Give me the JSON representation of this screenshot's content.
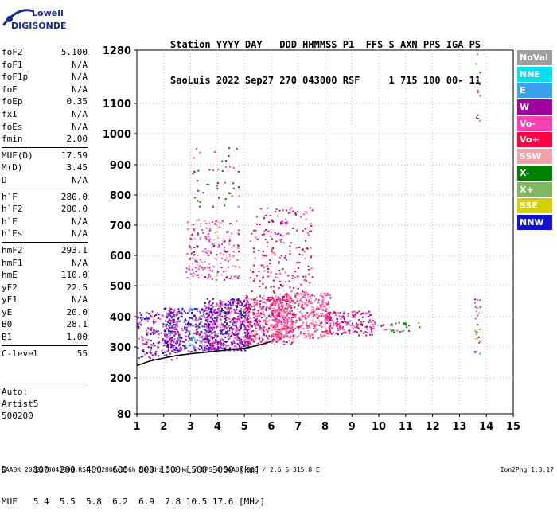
{
  "logo": {
    "top": "Lowell",
    "bottom": "DIGISONDE"
  },
  "header": {
    "line1": "Station YYYY DAY   DDD HHMMSS P1  FFS S AXN PPS IGA PS",
    "line2": "SaoLuis 2022 Sep27 270 043000 RSF     1 715 100 00- 11"
  },
  "params": [
    {
      "group": [
        {
          "name": "foF2",
          "value": "5.100"
        },
        {
          "name": "foF1",
          "value": "N/A"
        },
        {
          "name": "foF1p",
          "value": "N/A"
        },
        {
          "name": "foE",
          "value": "N/A"
        },
        {
          "name": "foEp",
          "value": "0.35"
        },
        {
          "name": "fxI",
          "value": "N/A"
        },
        {
          "name": "foEs",
          "value": "N/A"
        },
        {
          "name": "fmin",
          "value": "2.00"
        }
      ]
    },
    {
      "group": [
        {
          "name": "MUF(D)",
          "value": "17.59"
        },
        {
          "name": "M(D)",
          "value": "3.45"
        },
        {
          "name": "D",
          "value": "N/A"
        }
      ]
    },
    {
      "group": [
        {
          "name": "h`F",
          "value": "280.0"
        },
        {
          "name": "h`F2",
          "value": "280.0"
        },
        {
          "name": "h`E",
          "value": "N/A"
        },
        {
          "name": "h`Es",
          "value": "N/A"
        }
      ]
    },
    {
      "group": [
        {
          "name": "hmF2",
          "value": "293.1"
        },
        {
          "name": "hmF1",
          "value": "N/A"
        },
        {
          "name": "hmE",
          "value": "110.0"
        },
        {
          "name": "yF2",
          "value": "22.5"
        },
        {
          "name": "yF1",
          "value": "N/A"
        },
        {
          "name": "yE",
          "value": "20.0"
        },
        {
          "name": "B0",
          "value": "28.1"
        },
        {
          "name": "B1",
          "value": "1.00"
        }
      ]
    },
    {
      "group": [
        {
          "name": "C-level",
          "value": "55"
        }
      ]
    }
  ],
  "auto": [
    "Auto:",
    "Artist5",
    "500200"
  ],
  "legend": [
    {
      "label": "NoVal",
      "color": "#9e9e9e"
    },
    {
      "label": "NNE",
      "color": "#00e0f0"
    },
    {
      "label": "E",
      "color": "#3aa0f0"
    },
    {
      "label": "W",
      "color": "#a000a0"
    },
    {
      "label": "Vo-",
      "color": "#ff40b0"
    },
    {
      "label": "Vo+",
      "color": "#ff0040"
    },
    {
      "label": "SSW",
      "color": "#f4a0a8"
    },
    {
      "label": "X-",
      "color": "#008000"
    },
    {
      "label": "X+",
      "color": "#80b860"
    },
    {
      "label": "SSE",
      "color": "#d4d000"
    },
    {
      "label": "NNW",
      "color": "#1010d0"
    }
  ],
  "bottom": {
    "d_line": "D     100  200  400  600  800 1000 1500 3000 [km]",
    "muf_line": "MUF   5.4  5.5  5.8  6.2  6.9  7.8 10.5 17.6 [MHz]"
  },
  "footer": {
    "left": "SAA0K_2022270043000.RSF / 280fx256h 50 kHz 5.0 km / DPS-4 SAA0K 903 / 2.6 S 315.8 E",
    "right": "Ion2Png 1.3.17"
  },
  "chart_data": {
    "type": "scatter",
    "description": "ionogram",
    "x_ticks": [
      "1",
      "2",
      "3",
      "4",
      "5",
      "6",
      "7",
      "8",
      "9",
      "10",
      "11",
      "12",
      "13",
      "14",
      "15"
    ],
    "y_ticks": [
      "80",
      "200",
      "300",
      "400",
      "500",
      "600",
      "700",
      "800",
      "900",
      "1000",
      "1100",
      "1280"
    ],
    "xlim": [
      1,
      15
    ],
    "ylim": [
      80,
      1280
    ],
    "y_scale": "virtual height (nonlinear)",
    "trace_curve": [
      {
        "x": 1.0,
        "y": 240
      },
      {
        "x": 1.5,
        "y": 255
      },
      {
        "x": 2.0,
        "y": 264
      },
      {
        "x": 2.5,
        "y": 272
      },
      {
        "x": 3.0,
        "y": 278
      },
      {
        "x": 3.5,
        "y": 282
      },
      {
        "x": 4.0,
        "y": 287
      },
      {
        "x": 4.5,
        "y": 291
      },
      {
        "x": 5.0,
        "y": 296
      },
      {
        "x": 5.5,
        "y": 305
      },
      {
        "x": 6.0,
        "y": 318
      }
    ],
    "clusters": [
      {
        "x0": 1.0,
        "x1": 2.6,
        "y0": 260,
        "y1": 420,
        "density": 0.35,
        "colors": [
          "#1010d0",
          "#a000a0",
          "#ff40b0"
        ]
      },
      {
        "x0": 2.0,
        "x1": 4.0,
        "y0": 285,
        "y1": 430,
        "density": 0.55,
        "colors": [
          "#1010d0",
          "#a000a0",
          "#3aa0f0",
          "#ff40b0"
        ]
      },
      {
        "x0": 3.5,
        "x1": 5.2,
        "y0": 290,
        "y1": 460,
        "density": 0.7,
        "colors": [
          "#1010d0",
          "#a000a0",
          "#ff40b0"
        ]
      },
      {
        "x0": 5.0,
        "x1": 6.8,
        "y0": 310,
        "y1": 470,
        "density": 0.6,
        "colors": [
          "#ff40b0",
          "#ff0040",
          "#a000a0",
          "#f4a0a8"
        ]
      },
      {
        "x0": 6.0,
        "x1": 8.2,
        "y0": 330,
        "y1": 480,
        "density": 0.55,
        "colors": [
          "#ff40b0",
          "#ff0040",
          "#f4a0a8"
        ]
      },
      {
        "x0": 8.0,
        "x1": 9.8,
        "y0": 340,
        "y1": 420,
        "density": 0.45,
        "colors": [
          "#ff40b0",
          "#ff0040",
          "#a000a0"
        ]
      },
      {
        "x0": 9.8,
        "x1": 11.5,
        "y0": 350,
        "y1": 385,
        "density": 0.25,
        "colors": [
          "#008000",
          "#ff40b0",
          "#80b860"
        ]
      },
      {
        "x0": 2.8,
        "x1": 4.8,
        "y0": 520,
        "y1": 720,
        "density": 0.2,
        "colors": [
          "#a000a0",
          "#ff40b0",
          "#f4a0a8"
        ]
      },
      {
        "x0": 5.2,
        "x1": 7.5,
        "y0": 480,
        "y1": 760,
        "density": 0.12,
        "colors": [
          "#a000a0",
          "#ff40b0",
          "#ff0040"
        ]
      },
      {
        "x0": 3.0,
        "x1": 4.8,
        "y0": 760,
        "y1": 960,
        "density": 0.05,
        "colors": [
          "#a000a0",
          "#ff40b0",
          "#008000"
        ]
      },
      {
        "x0": 13.55,
        "x1": 13.75,
        "y0": 280,
        "y1": 460,
        "density": 0.3,
        "colors": [
          "#ff40b0",
          "#a000a0",
          "#3aa0f0",
          "#d4d000"
        ]
      },
      {
        "x0": 13.6,
        "x1": 13.75,
        "y0": 1020,
        "y1": 1270,
        "density": 0.15,
        "colors": [
          "#a000a0",
          "#ff40b0",
          "#008000"
        ]
      }
    ]
  }
}
